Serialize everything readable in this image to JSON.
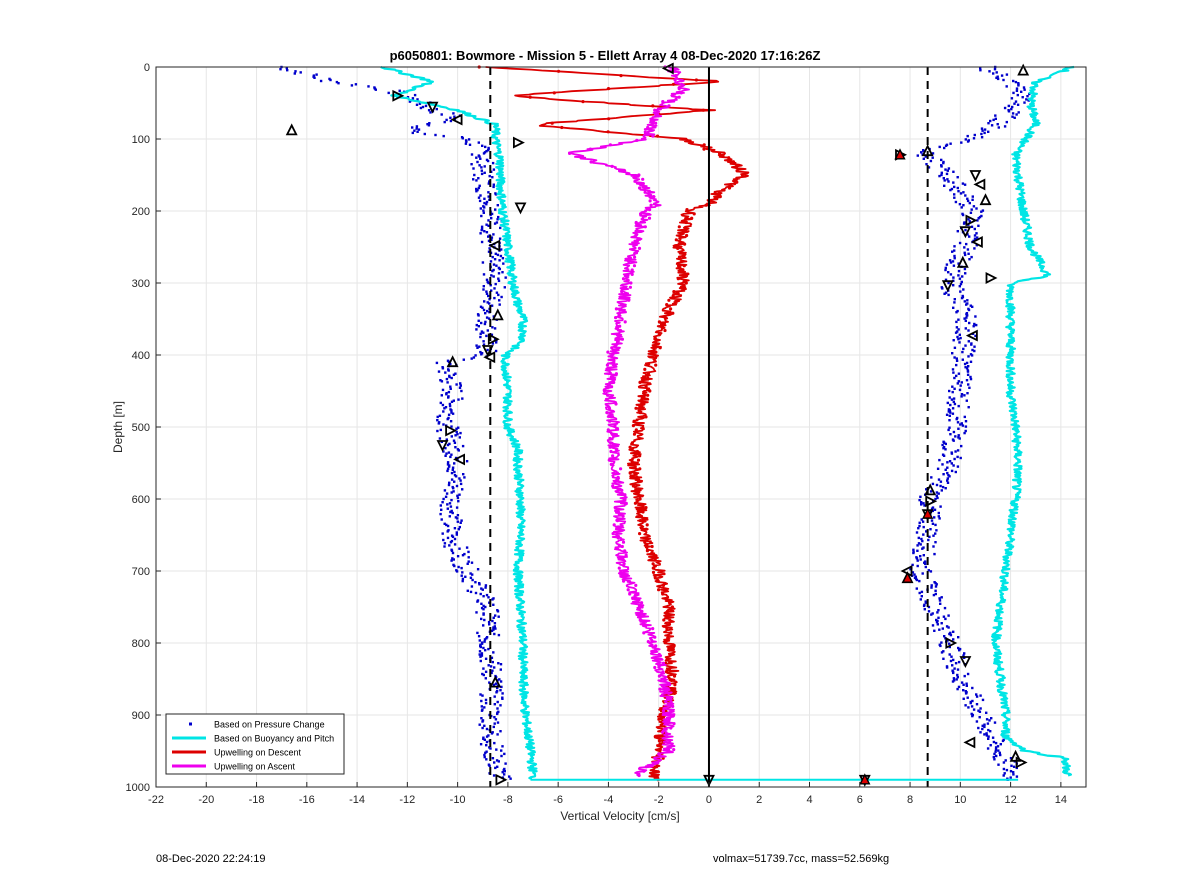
{
  "chart_data": {
    "type": "scatter",
    "title": "p6050801: Bowmore - Mission 5 - Ellett Array 4 08-Dec-2020 17:16:26Z",
    "xlabel": "Vertical Velocity [cm/s]",
    "ylabel": "Depth [m]",
    "xlim": [
      -22,
      15
    ],
    "ylim": [
      1000,
      0
    ],
    "y_reversed": true,
    "grid": true,
    "legend_position": "bottom-left",
    "xticks": [
      -22,
      -20,
      -18,
      -16,
      -14,
      -12,
      -10,
      -8,
      -6,
      -4,
      -2,
      0,
      2,
      4,
      6,
      8,
      10,
      12,
      14
    ],
    "yticks": [
      0,
      100,
      200,
      300,
      400,
      500,
      600,
      700,
      800,
      900,
      1000
    ],
    "reference_lines": [
      {
        "x": -8.7,
        "style": "dashed"
      },
      {
        "x": 0,
        "style": "solid"
      },
      {
        "x": 8.7,
        "style": "dashed"
      }
    ],
    "series": [
      {
        "name": "Based on Pressure Change",
        "kind": "points",
        "color": "#0000cc",
        "segments": [
          {
            "depth": [
              0,
              10,
              20,
              30,
              40,
              50,
              60,
              70,
              80,
              90,
              100,
              120,
              150,
              200,
              250,
              300,
              350,
              400,
              410,
              450,
              500,
              550,
              600,
              650,
              700,
              750,
              800,
              850,
              900,
              950,
              990
            ],
            "x": [
              -17,
              -16,
              -15,
              -13,
              -12,
              -11.5,
              -11,
              -10,
              -11,
              -12,
              -9.5,
              -9,
              -9,
              -8.6,
              -8.7,
              -8.5,
              -8.8,
              -8.9,
              -10.5,
              -10.2,
              -10.4,
              -10,
              -10.2,
              -10.3,
              -9.6,
              -8.8,
              -8.8,
              -8.6,
              -8.7,
              -8.6,
              -8.3
            ]
          },
          {
            "depth": [
              0,
              20,
              40,
              60,
              80,
              100,
              120,
              150,
              200,
              250,
              300,
              350,
              400,
              450,
              500,
              550,
              600,
              650,
              700,
              750,
              800,
              850,
              900,
              950,
              990
            ],
            "x": [
              11,
              12,
              12.5,
              12,
              11.5,
              10.5,
              8.5,
              9.5,
              10.5,
              10.2,
              9.6,
              10.3,
              10.1,
              10,
              9.8,
              9.6,
              8.8,
              8.7,
              8.4,
              9,
              9.6,
              10,
              10.8,
              11.5,
              12.2
            ]
          }
        ]
      },
      {
        "name": "Based on Buoyancy and Pitch",
        "kind": "line",
        "color": "#00e5e5",
        "segments": [
          {
            "depth": [
              0,
              20,
              40,
              60,
              80,
              100,
              130,
              160,
              200,
              250,
              300,
              330,
              350,
              380,
              400,
              410,
              450,
              500,
              530,
              550,
              600,
              650,
              700,
              750,
              800,
              850,
              900,
              950,
              980,
              990
            ],
            "x": [
              -13,
              -11,
              -12.5,
              -10,
              -8.5,
              -8.5,
              -8.3,
              -8.3,
              -8.2,
              -8,
              -7.8,
              -7.6,
              -7.4,
              -7.4,
              -8.1,
              -8.1,
              -8,
              -8,
              -7.6,
              -7.6,
              -7.5,
              -7.5,
              -7.6,
              -7.5,
              -7.4,
              -7.4,
              -7.3,
              -7.1,
              -7,
              -7
            ]
          },
          {
            "depth": [
              0,
              20,
              50,
              80,
              100,
              120,
              150,
              200,
              250,
              290,
              300,
              350,
              400,
              450,
              500,
              550,
              600,
              650,
              700,
              750,
              800,
              850,
              900,
              930,
              950,
              960,
              975,
              985
            ],
            "x": [
              14.5,
              13,
              12.8,
              13,
              12.6,
              12.2,
              12.3,
              12.5,
              12.8,
              13.5,
              12.0,
              12.0,
              12.0,
              12.0,
              12.2,
              12.3,
              12.2,
              12.0,
              11.8,
              11.6,
              11.4,
              11.6,
              11.8,
              11.8,
              12.6,
              14.2,
              14.2,
              14.3
            ]
          }
        ]
      },
      {
        "name": "Upwelling on Descent",
        "kind": "line",
        "color": "#dd0000",
        "segments": [
          {
            "depth": [
              0,
              20,
              40,
              60,
              80,
              100,
              120,
              150,
              170,
              190,
              200,
              250,
              300,
              350,
              400,
              450,
              500,
              550,
              600,
              650,
              700,
              750,
              800,
              850,
              900,
              950,
              990
            ],
            "x": [
              -9,
              0.5,
              -8,
              0,
              -7,
              -1,
              0.5,
              1.5,
              0.5,
              0,
              -0.8,
              -1.2,
              -1.0,
              -1.8,
              -2.2,
              -2.6,
              -2.8,
              -3.0,
              -2.8,
              -2.6,
              -2.0,
              -1.6,
              -1.6,
              -1.4,
              -1.8,
              -2.0,
              -2.2
            ]
          }
        ]
      },
      {
        "name": "Upwelling on Ascent",
        "kind": "line",
        "color": "#ee00ee",
        "segments": [
          {
            "depth": [
              0,
              30,
              60,
              100,
              120,
              150,
              170,
              190,
              200,
              250,
              300,
              350,
              400,
              450,
              500,
              550,
              600,
              650,
              700,
              750,
              800,
              850,
              900,
              950,
              985
            ],
            "x": [
              -1.5,
              -1.0,
              -2.0,
              -2.5,
              -5.5,
              -3.0,
              -2.5,
              -2.0,
              -2.5,
              -3.0,
              -3.3,
              -3.5,
              -3.8,
              -4.0,
              -3.8,
              -3.8,
              -3.5,
              -3.6,
              -3.4,
              -2.8,
              -2.2,
              -1.8,
              -1.6,
              -1.6,
              -3.0
            ]
          }
        ]
      }
    ],
    "markers": {
      "count_note": "triangle markers along pressure-change series",
      "points": [
        {
          "x": 12.5,
          "depth": 5
        },
        {
          "x": -12.4,
          "depth": 40
        },
        {
          "x": -11.0,
          "depth": 55
        },
        {
          "x": -10.0,
          "depth": 73
        },
        {
          "x": -16.6,
          "depth": 88
        },
        {
          "x": -7.6,
          "depth": 105
        },
        {
          "x": -7.5,
          "depth": 195
        },
        {
          "x": -8.5,
          "depth": 248
        },
        {
          "x": -8.4,
          "depth": 345
        },
        {
          "x": -8.6,
          "depth": 378
        },
        {
          "x": -8.8,
          "depth": 393
        },
        {
          "x": -8.7,
          "depth": 403
        },
        {
          "x": -10.2,
          "depth": 410
        },
        {
          "x": -10.3,
          "depth": 505
        },
        {
          "x": -10.6,
          "depth": 525
        },
        {
          "x": -9.9,
          "depth": 545
        },
        {
          "x": -8.5,
          "depth": 855
        },
        {
          "x": -8.3,
          "depth": 990
        },
        {
          "x": 0,
          "depth": 990
        },
        {
          "x": -1.6,
          "depth": 2
        },
        {
          "x": 8.7,
          "depth": 117
        },
        {
          "x": 7.6,
          "depth": 122
        },
        {
          "x": 10.6,
          "depth": 150
        },
        {
          "x": 10.8,
          "depth": 163
        },
        {
          "x": 11.0,
          "depth": 185
        },
        {
          "x": 10.4,
          "depth": 213
        },
        {
          "x": 10.2,
          "depth": 228
        },
        {
          "x": 10.7,
          "depth": 243
        },
        {
          "x": 10.1,
          "depth": 272
        },
        {
          "x": 11.2,
          "depth": 293
        },
        {
          "x": 9.5,
          "depth": 303
        },
        {
          "x": 10.5,
          "depth": 373
        },
        {
          "x": 8.8,
          "depth": 588
        },
        {
          "x": 8.8,
          "depth": 603
        },
        {
          "x": 8.7,
          "depth": 621
        },
        {
          "x": 7.9,
          "depth": 700
        },
        {
          "x": 7.9,
          "depth": 710
        },
        {
          "x": 9.6,
          "depth": 800
        },
        {
          "x": 10.2,
          "depth": 825
        },
        {
          "x": 10.4,
          "depth": 938
        },
        {
          "x": 12.2,
          "depth": 958
        },
        {
          "x": 12.4,
          "depth": 966
        },
        {
          "x": 6.2,
          "depth": 990
        }
      ],
      "filled_points": [
        {
          "x": 7.6,
          "depth": 122
        },
        {
          "x": 8.7,
          "depth": 621
        },
        {
          "x": 7.9,
          "depth": 710
        },
        {
          "x": 6.2,
          "depth": 990
        }
      ]
    }
  },
  "footer": {
    "timestamp": "08-Dec-2020 22:24:19",
    "info": "volmax=51739.7cc, mass=52.569kg"
  }
}
